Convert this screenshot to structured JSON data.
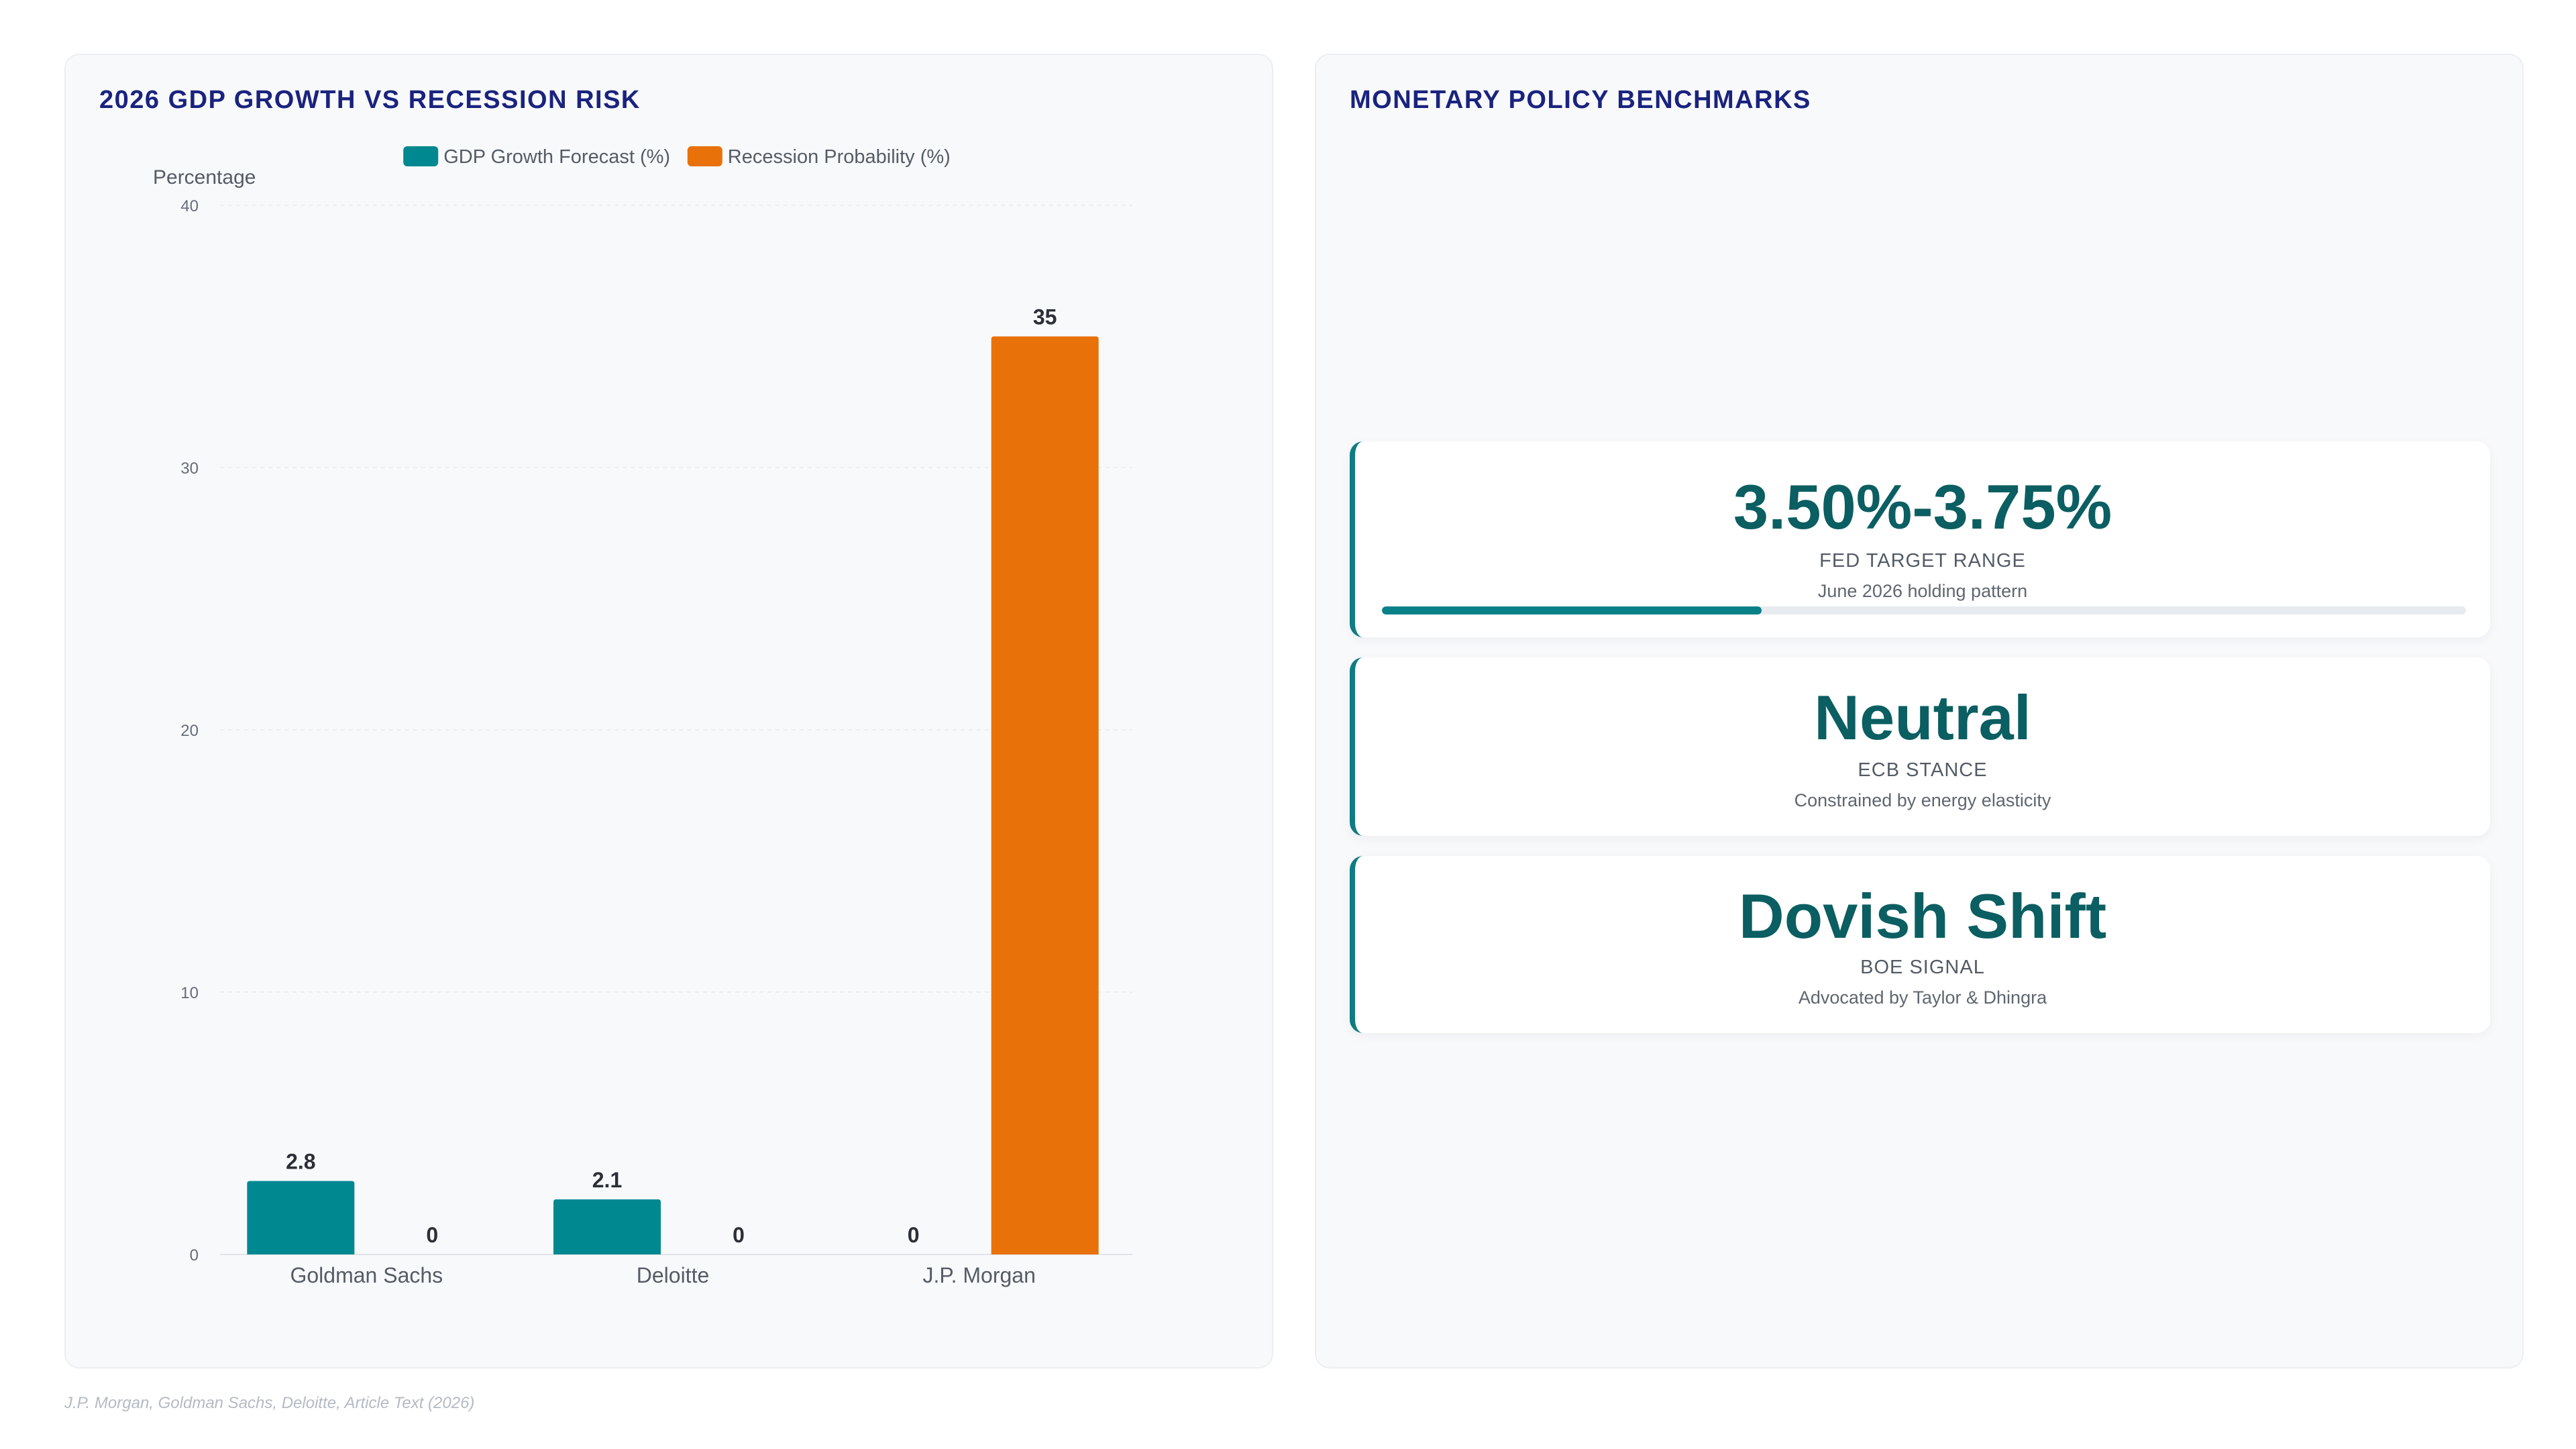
{
  "left_panel": {
    "title": "2026 GDP GROWTH VS RECESSION RISK"
  },
  "right_panel": {
    "title": "MONETARY POLICY BENCHMARKS"
  },
  "chart_data": {
    "type": "bar",
    "title": "2026 GDP GROWTH VS RECESSION RISK",
    "ylabel": "Percentage",
    "xlabel": "",
    "categories": [
      "Goldman Sachs",
      "Deloitte",
      "J.P. Morgan"
    ],
    "series": [
      {
        "name": "GDP Growth Forecast (%)",
        "color": "#008890",
        "values": [
          2.8,
          2.1,
          0
        ]
      },
      {
        "name": "Recession Probability (%)",
        "color": "#e8710a",
        "values": [
          0,
          0,
          35
        ]
      }
    ],
    "ylim": [
      0,
      40
    ],
    "yticks": [
      0,
      10,
      20,
      30,
      40
    ],
    "legend": "top-center",
    "grid": true
  },
  "kpis": [
    {
      "value": "3.50%-3.75%",
      "label": "FED TARGET RANGE",
      "desc": "June 2026 holding pattern",
      "progress": 0.35
    },
    {
      "value": "Neutral",
      "label": "ECB STANCE",
      "desc": "Constrained by energy elasticity"
    },
    {
      "value": "Dovish Shift",
      "label": "BOE SIGNAL",
      "desc": "Advocated by Taylor & Dhingra"
    }
  ],
  "colors": {
    "accent": "#0f7b82",
    "title": "#1a237e",
    "orange": "#e8710a",
    "teal": "#008890"
  },
  "footer": {
    "source": "J.P. Morgan, Goldman Sachs, Deloitte, Article Text (2026)"
  }
}
